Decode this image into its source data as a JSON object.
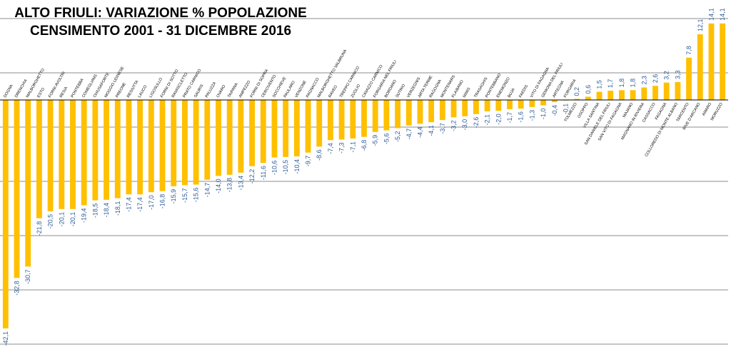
{
  "chart_data": {
    "type": "bar",
    "title": "ALTO FRIULI: VARIAZIONE % POPOLAZIONE",
    "subtitle": "CENSIMENTO 2001 - 31 DICEMBRE 2016",
    "xlabel": "",
    "ylabel": "",
    "ylim": [
      -45,
      15
    ],
    "grid": true,
    "legend": "none",
    "bar_color": "#FFC000",
    "label_color": "#2E5C99",
    "categories": [
      "DOGNA",
      "DRENCHIA",
      "MALBORGHETTO",
      "ESTO",
      "FORNI AVOLTRI",
      "RESIA",
      "PONTEBBA",
      "COMEGLIANS",
      "CHIUSAFORTE",
      "MOGGIO UDINESE",
      "PREONE",
      "RESIUTTA",
      "LAUCO",
      "LIGOSULLO",
      "FORNI DI SOTTO",
      "RAVASCLETTO",
      "PRATO CARNICO",
      "SAURIS",
      "PALUZZA",
      "OVARO",
      "TAIPANA",
      "AMPEZZO",
      "FORNI DI SOPRA",
      "CERCIVENTO",
      "SOCCHIEVE",
      "PAULARO",
      "VENZONE",
      "PAGNACCO",
      "MALBORGHETTO VALBRUNA",
      "RAVEO",
      "TREPPO CARNICO",
      "ZUGLIO",
      "CAVAZZO CARNICO",
      "FORGARIA NEL FRIULI",
      "BORDANO",
      "SUTRIO",
      "VERZEGNIS",
      "ARTA TERME",
      "RAGOGNA",
      "MONTENARS",
      "FLAIBANO",
      "NIMIS",
      "TRASAGHIS",
      "PONTEBBANO",
      "ENEMONZO",
      "BUJA",
      "FAEDIS",
      "VITO DI FAGAGNA",
      "GEMONA DEL FRIULI",
      "ARTEGNA",
      "FORGARIA",
      "TOLMEZZO",
      "OSOPPO",
      "VILLA SANTINA",
      "SAN DANIELE DEL FRIULI",
      "SAN VITO DI FAGAGNA",
      "MAJANO",
      "MAGNANO IN RIVIERA",
      "CASSACCO",
      "FAGAGNA",
      "COLLOREDO DI MONTE ALBANO",
      "TARCENTO",
      "RIVE D'ARCANO",
      "AMARO",
      "MORUZZO"
    ],
    "values": [
      -42.1,
      -32.8,
      -30.7,
      -21.8,
      -20.5,
      -20.1,
      -20.1,
      -19.4,
      -18.5,
      -18.4,
      -18.1,
      -17.4,
      -17.4,
      -17.0,
      -16.8,
      -15.9,
      -15.7,
      -15.6,
      -14.7,
      -14.0,
      -13.8,
      -13.4,
      -12.2,
      -11.6,
      -10.6,
      -10.5,
      -10.4,
      -9.7,
      -8.6,
      -7.4,
      -7.3,
      -7.1,
      -6.8,
      -5.9,
      -5.6,
      -5.2,
      -4.7,
      -4.4,
      -4.1,
      -3.7,
      -3.2,
      -3.0,
      -2.6,
      -2.1,
      -2.0,
      -1.7,
      -1.6,
      -1.3,
      -1.0,
      -0.4,
      -0.1,
      0.2,
      0.6,
      1.5,
      1.7,
      1.8,
      1.8,
      2.3,
      2.6,
      3.2,
      3.3,
      7.8,
      12.1,
      14.1,
      14.1
    ],
    "data_labels": [
      "-42,1",
      "-32,8",
      "-30,7",
      "-21,8",
      "-20,5",
      "-20,1",
      "-20,1",
      "-19,4",
      "-18,5",
      "-18,4",
      "-18,1",
      "-17,4",
      "-17,4",
      "-17,0",
      "-16,8",
      "-15,9",
      "-15,7",
      "-15,6",
      "-14,7",
      "-14,0",
      "-13,8",
      "-13,4",
      "-12,2",
      "-11,6",
      "-10,6",
      "-10,5",
      "-10,4",
      "-9,7",
      "-8,6",
      "-7,4",
      "-7,3",
      "-7,1",
      "-6,8",
      "-5,9",
      "-5,6",
      "-5,2",
      "-4,7",
      "-4,4",
      "-4,1",
      "-3,7",
      "-3,2",
      "-3,0",
      "-2,6",
      "-2,1",
      "-2,0",
      "-1,7",
      "-1,6",
      "-1,3",
      "-1,0",
      "-0,4",
      "-0,1",
      "0,2",
      "0,6",
      "1,5",
      "1,7",
      "1,8",
      "1,8",
      "2,3",
      "2,6",
      "3,2",
      "3,3",
      "7,8",
      "12,1",
      "14,1",
      "14,1"
    ]
  }
}
